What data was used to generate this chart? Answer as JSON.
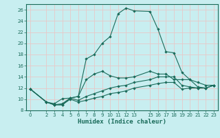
{
  "xlabel": "Humidex (Indice chaleur)",
  "bg_color": "#c8eef0",
  "grid_color": "#e8c8c8",
  "line_color": "#1a6b5a",
  "spine_color": "#1a6b5a",
  "xlim": [
    -0.5,
    23.5
  ],
  "ylim": [
    8,
    27
  ],
  "xticks": [
    0,
    2,
    3,
    4,
    5,
    6,
    7,
    8,
    9,
    10,
    11,
    12,
    13,
    15,
    16,
    17,
    18,
    19,
    20,
    21,
    22,
    23
  ],
  "yticks": [
    8,
    10,
    12,
    14,
    16,
    18,
    20,
    22,
    24,
    26
  ],
  "line1_x": [
    0,
    2,
    3,
    4,
    5,
    6,
    7,
    8,
    9,
    10,
    11,
    12,
    13,
    15,
    16,
    17,
    18,
    19,
    20,
    21,
    22,
    23
  ],
  "line1_y": [
    11.8,
    9.5,
    9.2,
    10.1,
    10.2,
    10.5,
    17.2,
    18.0,
    20.0,
    21.2,
    25.3,
    26.3,
    25.8,
    25.7,
    22.5,
    18.5,
    18.3,
    14.8,
    13.5,
    12.2,
    12.0,
    12.5
  ],
  "line2_x": [
    0,
    2,
    3,
    4,
    5,
    6,
    7,
    8,
    9,
    10,
    11,
    12,
    13,
    15,
    16,
    17,
    18,
    19,
    20,
    21,
    22,
    23
  ],
  "line2_y": [
    11.8,
    9.5,
    9.0,
    9.0,
    10.2,
    10.5,
    13.5,
    14.5,
    15.0,
    14.2,
    13.8,
    13.8,
    14.0,
    15.0,
    14.5,
    14.5,
    13.5,
    13.5,
    13.5,
    13.0,
    12.5,
    12.5
  ],
  "line3_x": [
    0,
    2,
    3,
    4,
    5,
    6,
    7,
    8,
    9,
    10,
    11,
    12,
    13,
    15,
    16,
    17,
    18,
    19,
    20,
    21,
    22,
    23
  ],
  "line3_y": [
    11.8,
    9.5,
    9.0,
    9.2,
    10.2,
    9.8,
    10.5,
    11.0,
    11.5,
    12.0,
    12.3,
    12.5,
    13.0,
    13.5,
    14.0,
    14.0,
    14.0,
    12.5,
    12.2,
    12.0,
    12.0,
    12.5
  ],
  "line4_x": [
    0,
    2,
    3,
    4,
    5,
    6,
    7,
    8,
    9,
    10,
    11,
    12,
    13,
    15,
    16,
    17,
    18,
    19,
    20,
    21,
    22,
    23
  ],
  "line4_y": [
    11.8,
    9.5,
    9.0,
    9.0,
    10.0,
    9.5,
    9.8,
    10.2,
    10.5,
    11.0,
    11.2,
    11.5,
    12.0,
    12.5,
    12.8,
    13.0,
    13.0,
    11.8,
    12.0,
    12.0,
    12.0,
    12.5
  ],
  "lw": 0.8,
  "ms": 2.2,
  "xlabel_fontsize": 6.5,
  "tick_fontsize": 5.0
}
